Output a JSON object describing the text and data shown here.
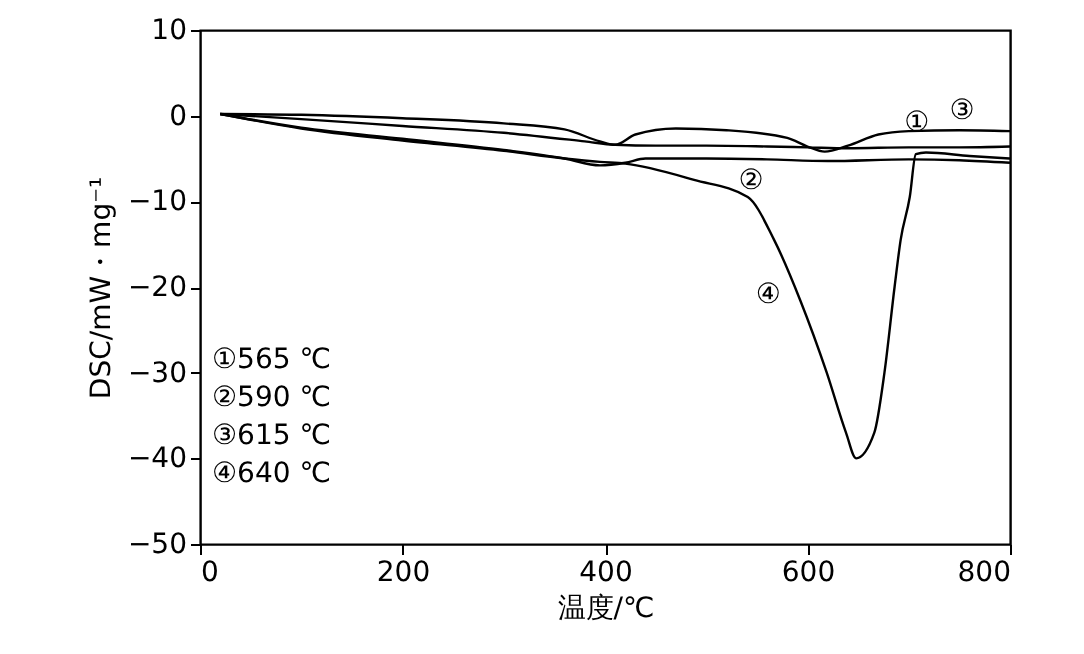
{
  "chart_data": {
    "type": "line",
    "xlabel": "温度/℃",
    "ylabel": "DSC/mW・mg⁻¹",
    "xlim": [
      0,
      800
    ],
    "ylim": [
      -50,
      10
    ],
    "xticks": [
      0,
      200,
      400,
      600,
      800
    ],
    "yticks": [
      -50,
      -40,
      -30,
      -20,
      -10,
      0,
      10
    ],
    "grid": false,
    "legend": false,
    "marker": "none",
    "line_style": "solid",
    "series": [
      {
        "name": "①",
        "color": "#000000",
        "x": [
          20,
          100,
          200,
          300,
          380,
          410,
          450,
          500,
          560,
          600,
          640,
          700,
          750,
          800
        ],
        "values": [
          0.2,
          -0.4,
          -1.2,
          -2.0,
          -3.0,
          -3.4,
          -3.5,
          -3.5,
          -3.6,
          -3.7,
          -3.8,
          -3.7,
          -3.7,
          -3.6
        ]
      },
      {
        "name": "②",
        "color": "#000000",
        "x": [
          20,
          100,
          200,
          300,
          360,
          395,
          420,
          440,
          500,
          560,
          620,
          700,
          750,
          800
        ],
        "values": [
          0.2,
          -1.4,
          -2.7,
          -4.0,
          -5.0,
          -5.8,
          -5.5,
          -5.0,
          -5.0,
          -5.1,
          -5.3,
          -5.1,
          -5.2,
          -5.5
        ]
      },
      {
        "name": "③",
        "color": "#000000",
        "x": [
          20,
          100,
          200,
          300,
          360,
          395,
          410,
          430,
          470,
          520,
          580,
          600,
          617,
          640,
          670,
          700,
          750,
          800
        ],
        "values": [
          0.2,
          0.1,
          -0.3,
          -0.9,
          -1.6,
          -3.0,
          -3.4,
          -2.2,
          -1.5,
          -1.7,
          -2.6,
          -3.6,
          -4.2,
          -3.5,
          -2.2,
          -1.8,
          -1.7,
          -1.8
        ]
      },
      {
        "name": "④",
        "color": "#000000",
        "x": [
          20,
          100,
          200,
          300,
          360,
          395,
          420,
          488,
          541,
          567,
          593,
          619,
          638,
          648,
          666,
          676,
          686,
          692,
          701,
          707,
          717,
          760,
          800
        ],
        "values": [
          0.2,
          -1.5,
          -2.9,
          -4.1,
          -5.0,
          -5.4,
          -5.6,
          -7.5,
          -9.5,
          -14.5,
          -21.6,
          -30,
          -37,
          -40,
          -37,
          -30,
          -20,
          -14.5,
          -9.5,
          -4.5,
          -4.3,
          -4.7,
          -5.0
        ]
      }
    ],
    "annotations": [
      "①565 ℃",
      "②590 ℃",
      "③615 ℃",
      "④640 ℃"
    ]
  }
}
